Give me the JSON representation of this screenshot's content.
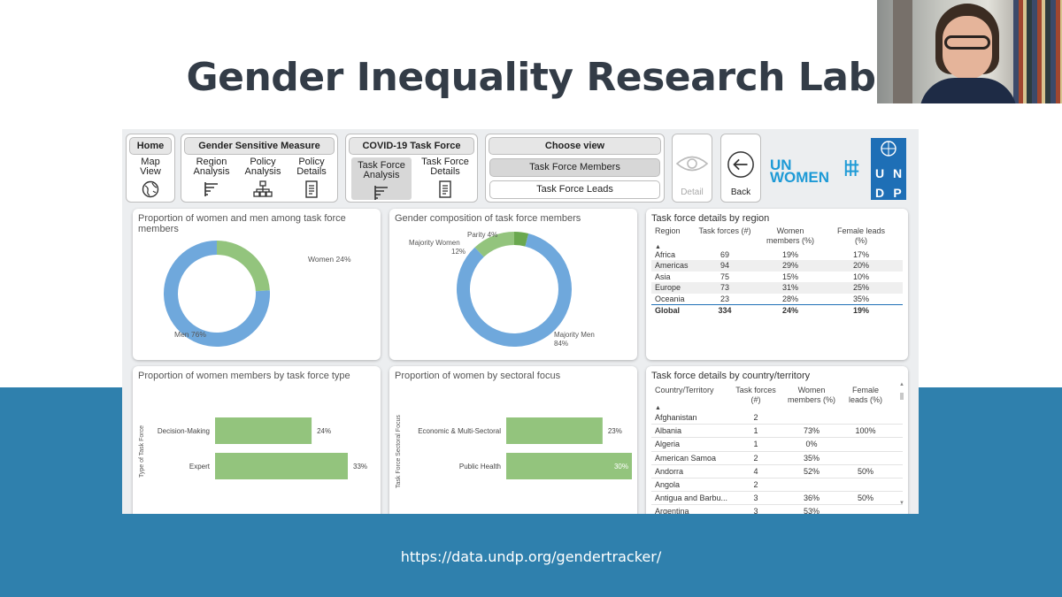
{
  "slide": {
    "title": "Gender Inequality Research Lab",
    "url": "https://data.undp.org/gendertracker/",
    "accent_color": "#2f80ad"
  },
  "nav": {
    "home": {
      "header": "Home",
      "item": "Map\nView",
      "icon": "globe-icon"
    },
    "gender_measure": {
      "header": "Gender Sensitive Measure",
      "items": [
        {
          "label": "Region\nAnalysis",
          "icon": "bar-chart-icon"
        },
        {
          "label": "Policy\nAnalysis",
          "icon": "hierarchy-icon"
        },
        {
          "label": "Policy\nDetails",
          "icon": "document-icon"
        }
      ]
    },
    "covid": {
      "header": "COVID-19 Task Force",
      "items": [
        {
          "label": "Task Force\nAnalysis",
          "icon": "bar-chart-icon",
          "active": true
        },
        {
          "label": "Task Force\nDetails",
          "icon": "document-icon"
        }
      ]
    },
    "choose_view": {
      "header": "Choose view",
      "options": [
        "Task Force Members",
        "Task Force Leads"
      ],
      "selected": "Task Force Members"
    },
    "detail_label": "Detail",
    "back_label": "Back"
  },
  "logos": {
    "un_women": "UN\nWOMEN",
    "undp": [
      "U",
      "N",
      "D",
      "P"
    ]
  },
  "donut1": {
    "title": "Proportion of women and men among task force members",
    "slices": [
      {
        "label": "Women 24%",
        "value": 24,
        "color": "#93c47d"
      },
      {
        "label": "Men 76%",
        "value": 76,
        "color": "#6fa8dc"
      }
    ]
  },
  "donut2": {
    "title": "Gender composition of task force members",
    "slices": [
      {
        "label": "Parity 4%",
        "value": 4,
        "color": "#6aa84f"
      },
      {
        "label": "Majority Women 12%",
        "value": 12,
        "color": "#93c47d"
      },
      {
        "label": "Majority Men 84%",
        "value": 84,
        "color": "#6fa8dc"
      }
    ]
  },
  "region_table": {
    "title": "Task force details by region",
    "headers": [
      "Region",
      "Task forces (#)",
      "Women members (%)",
      "Female leads (%)"
    ],
    "rows": [
      [
        "Africa",
        "69",
        "19%",
        "17%"
      ],
      [
        "Americas",
        "94",
        "29%",
        "20%"
      ],
      [
        "Asia",
        "75",
        "15%",
        "10%"
      ],
      [
        "Europe",
        "73",
        "31%",
        "25%"
      ],
      [
        "Oceania",
        "23",
        "28%",
        "35%"
      ]
    ],
    "total": [
      "Global",
      "334",
      "24%",
      "19%"
    ]
  },
  "bar1": {
    "title": "Proportion of women members by task force type",
    "axis_label": "Type of Task Force",
    "categories": [
      "Decision-Making",
      "Expert"
    ],
    "values": [
      24,
      33
    ],
    "labels": [
      "24%",
      "33%"
    ],
    "color": "#93c47d"
  },
  "bar2": {
    "title": "Proportion of women by sectoral focus",
    "axis_label": "Task Force Sectoral Focus",
    "categories": [
      "Economic & Multi-Sectoral",
      "Public Health"
    ],
    "values": [
      23,
      30
    ],
    "labels": [
      "23%",
      "30%"
    ],
    "color": "#93c47d"
  },
  "country_table": {
    "title": "Task force details by country/territory",
    "headers": [
      "Country/Territory",
      "Task forces (#)",
      "Women members (%)",
      "Female leads (%)"
    ],
    "rows": [
      [
        "Afghanistan",
        "2",
        "",
        ""
      ],
      [
        "Albania",
        "1",
        "73%",
        "100%"
      ],
      [
        "Algeria",
        "1",
        "0%",
        ""
      ],
      [
        "American Samoa",
        "2",
        "35%",
        ""
      ],
      [
        "Andorra",
        "4",
        "52%",
        "50%"
      ],
      [
        "Angola",
        "2",
        "",
        ""
      ],
      [
        "Antigua and Barbu...",
        "3",
        "36%",
        "50%"
      ],
      [
        "Argentina",
        "3",
        "53%",
        ""
      ]
    ]
  },
  "chart_data": [
    {
      "type": "pie",
      "title": "Proportion of women and men among task force members",
      "labels": [
        "Women",
        "Men"
      ],
      "values": [
        24,
        76
      ]
    },
    {
      "type": "pie",
      "title": "Gender composition of task force members",
      "labels": [
        "Parity",
        "Majority Women",
        "Majority Men"
      ],
      "values": [
        4,
        12,
        84
      ]
    },
    {
      "type": "bar",
      "title": "Proportion of women members by task force type",
      "categories": [
        "Decision-Making",
        "Expert"
      ],
      "values": [
        24,
        33
      ],
      "ylabel": "Type of Task Force"
    },
    {
      "type": "bar",
      "title": "Proportion of women by sectoral focus",
      "categories": [
        "Economic & Multi-Sectoral",
        "Public Health"
      ],
      "values": [
        23,
        30
      ],
      "ylabel": "Task Force Sectoral Focus"
    }
  ]
}
